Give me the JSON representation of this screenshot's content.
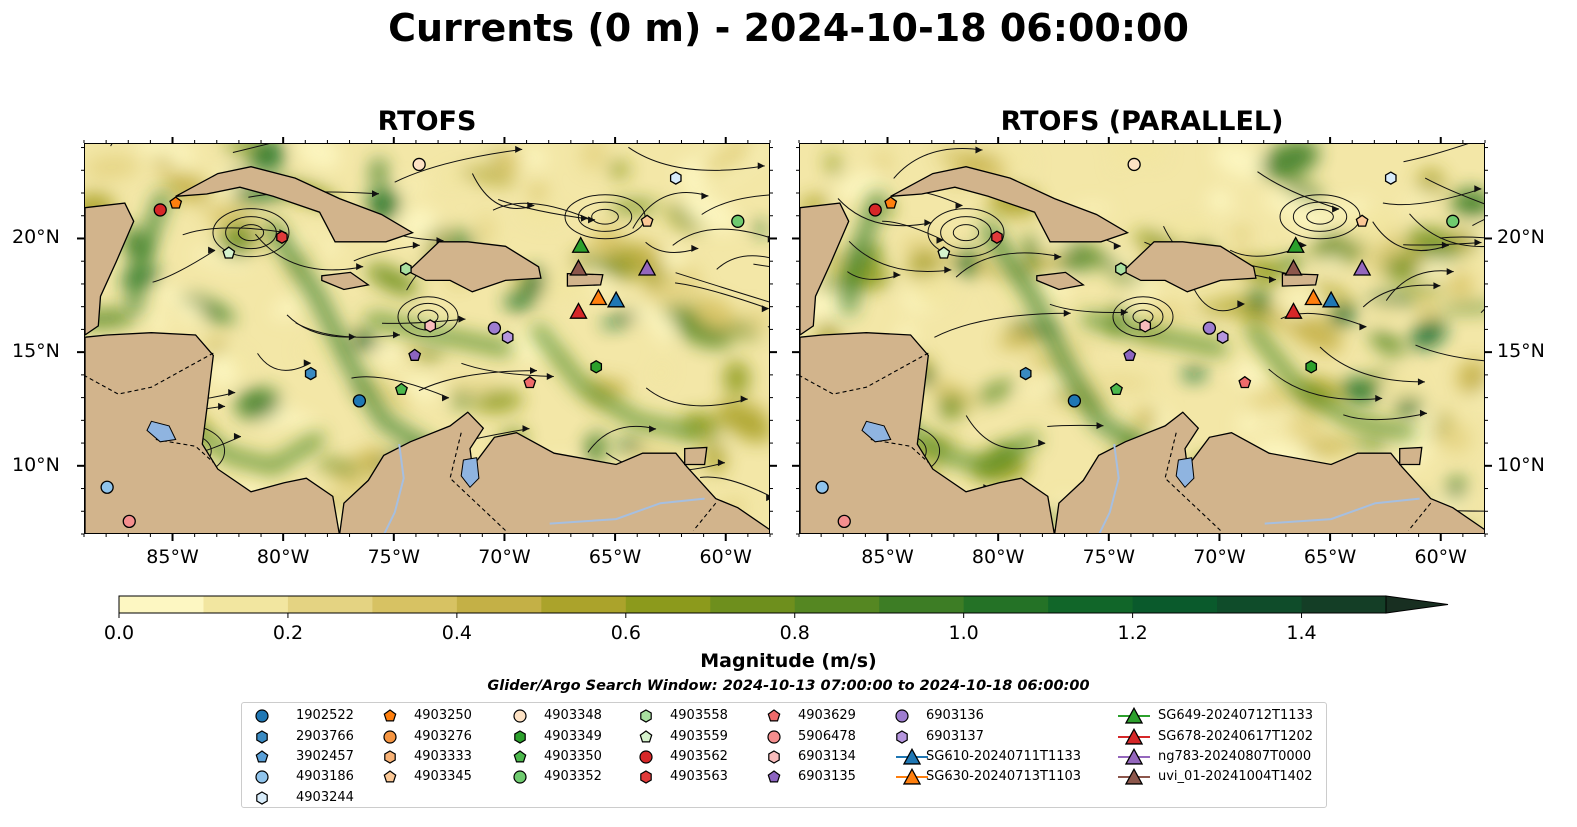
{
  "title": "Currents (0 m) - 2024-10-18 06:00:00",
  "panels": [
    {
      "title": "RTOFS"
    },
    {
      "title": "RTOFS (PARALLEL)"
    }
  ],
  "map": {
    "lon_range": [
      -89,
      -58
    ],
    "lat_range": [
      7,
      24.2
    ],
    "lon_ticks": [
      -85,
      -80,
      -75,
      -70,
      -65,
      -60
    ],
    "lon_tick_labels": [
      "85°W",
      "80°W",
      "75°W",
      "70°W",
      "65°W",
      "60°W"
    ],
    "lat_ticks": [
      10,
      15,
      20
    ],
    "lat_tick_labels": [
      "10°N",
      "15°N",
      "20°N"
    ]
  },
  "colorbar": {
    "label": "Magnitude (m/s)",
    "min": 0.0,
    "max": 1.5,
    "ticks": [
      "0.0",
      "0.2",
      "0.4",
      "0.6",
      "0.8",
      "1.0",
      "1.2",
      "1.4"
    ],
    "tick_values": [
      0.0,
      0.2,
      0.4,
      0.6,
      0.8,
      1.0,
      1.2,
      1.4
    ],
    "colors": [
      "#fdf7c2",
      "#f2e6a0",
      "#e4d382",
      "#d7c263",
      "#c4b046",
      "#aba32b",
      "#8c9a1c",
      "#6e8f1d",
      "#558722",
      "#3d7d25",
      "#247226",
      "#116629",
      "#0a5a2c",
      "#0f4c2a",
      "#143e26",
      "#182f21"
    ],
    "extend": "max"
  },
  "search_window": "Glider/Argo Search Window: 2024-10-13 07:00:00 to 2024-10-18 06:00:00",
  "colors": {
    "land": "#d2b48c",
    "lake": "#8fb4e0",
    "river": "#a6bfe0",
    "ocean_base": "#f3e7a7"
  },
  "legend": [
    {
      "label": "1902522",
      "marker": "circle",
      "color": "#1f77b4"
    },
    {
      "label": "2903766",
      "marker": "hexagon",
      "color": "#3a8ac2"
    },
    {
      "label": "3902457",
      "marker": "pentagon",
      "color": "#5aa0d8"
    },
    {
      "label": "4903186",
      "marker": "circle",
      "color": "#90c4ec"
    },
    {
      "label": "4903244",
      "marker": "hexagon",
      "color": "#d8ecfa"
    },
    {
      "label": "4903250",
      "marker": "pentagon",
      "color": "#ff7f0e"
    },
    {
      "label": "4903276",
      "marker": "circle",
      "color": "#f59542"
    },
    {
      "label": "4903333",
      "marker": "hexagon",
      "color": "#f8b276"
    },
    {
      "label": "4903345",
      "marker": "pentagon",
      "color": "#fbc896"
    },
    {
      "label": "4903348",
      "marker": "circle",
      "color": "#fde2c4"
    },
    {
      "label": "4903349",
      "marker": "hexagon",
      "color": "#2ca02c"
    },
    {
      "label": "4903350",
      "marker": "pentagon",
      "color": "#4cb84c"
    },
    {
      "label": "4903352",
      "marker": "circle",
      "color": "#6fcb6f"
    },
    {
      "label": "4903558",
      "marker": "hexagon",
      "color": "#a9e0a0"
    },
    {
      "label": "4903559",
      "marker": "pentagon",
      "color": "#d5f2cc"
    },
    {
      "label": "4903562",
      "marker": "circle",
      "color": "#d62728"
    },
    {
      "label": "4903563",
      "marker": "hexagon",
      "color": "#e03a3a"
    },
    {
      "label": "4903629",
      "marker": "pentagon",
      "color": "#ef6b6b"
    },
    {
      "label": "5906478",
      "marker": "circle",
      "color": "#f48e8e"
    },
    {
      "label": "6903134",
      "marker": "hexagon",
      "color": "#f9bcbc"
    },
    {
      "label": "6903135",
      "marker": "pentagon",
      "color": "#8c64c0"
    },
    {
      "label": "6903136",
      "marker": "circle",
      "color": "#9e7dd0"
    },
    {
      "label": "6903137",
      "marker": "hexagon",
      "color": "#b596de"
    },
    {
      "label": "SG610-20240711T1133",
      "marker": "triangle",
      "color": "#1f77b4"
    },
    {
      "label": "SG630-20240713T1103",
      "marker": "triangle",
      "color": "#ff7f0e"
    },
    {
      "label": "SG649-20240712T1133",
      "marker": "triangle",
      "color": "#2ca02c"
    },
    {
      "label": "SG678-20240617T1202",
      "marker": "triangle",
      "color": "#d62728"
    },
    {
      "label": "ng783-20240807T0000",
      "marker": "triangle",
      "color": "#9467bd"
    },
    {
      "label": "uvi_01-20241004T1402",
      "marker": "triangle",
      "color": "#8c564b"
    }
  ],
  "markers": [
    {
      "id": "1902522",
      "lon": -76.6,
      "lat": 12.9,
      "marker": "circle",
      "color": "#1f77b4"
    },
    {
      "id": "2903766",
      "lon": -78.8,
      "lat": 14.1,
      "marker": "hexagon",
      "color": "#3a8ac2"
    },
    {
      "id": "4903186",
      "lon": -88.0,
      "lat": 9.1,
      "marker": "circle",
      "color": "#90c4ec"
    },
    {
      "id": "4903244",
      "lon": -62.3,
      "lat": 22.7,
      "marker": "hexagon",
      "color": "#d8ecfa"
    },
    {
      "id": "4903250",
      "lon": -84.9,
      "lat": 21.6,
      "marker": "pentagon",
      "color": "#ff7f0e"
    },
    {
      "id": "4903345",
      "lon": -63.6,
      "lat": 20.8,
      "marker": "pentagon",
      "color": "#fbc896"
    },
    {
      "id": "4903348",
      "lon": -73.9,
      "lat": 23.3,
      "marker": "circle",
      "color": "#fde2c4"
    },
    {
      "id": "4903349",
      "lon": -65.9,
      "lat": 14.4,
      "marker": "hexagon",
      "color": "#2ca02c"
    },
    {
      "id": "4903350",
      "lon": -74.7,
      "lat": 13.4,
      "marker": "pentagon",
      "color": "#4cb84c"
    },
    {
      "id": "4903352",
      "lon": -59.5,
      "lat": 20.8,
      "marker": "circle",
      "color": "#6fcb6f"
    },
    {
      "id": "4903558",
      "lon": -74.5,
      "lat": 18.7,
      "marker": "hexagon",
      "color": "#a9e0a0"
    },
    {
      "id": "4903559",
      "lon": -82.5,
      "lat": 19.4,
      "marker": "pentagon",
      "color": "#d5f2cc"
    },
    {
      "id": "4903562",
      "lon": -85.6,
      "lat": 21.3,
      "marker": "circle",
      "color": "#d62728"
    },
    {
      "id": "4903563",
      "lon": -80.1,
      "lat": 20.1,
      "marker": "hexagon",
      "color": "#e03a3a"
    },
    {
      "id": "4903629",
      "lon": -68.9,
      "lat": 13.7,
      "marker": "pentagon",
      "color": "#ef6b6b"
    },
    {
      "id": "5906478",
      "lon": -87.0,
      "lat": 7.6,
      "marker": "circle",
      "color": "#f48e8e"
    },
    {
      "id": "6903134",
      "lon": -73.4,
      "lat": 16.2,
      "marker": "hexagon",
      "color": "#f9bcbc"
    },
    {
      "id": "6903135",
      "lon": -74.1,
      "lat": 14.9,
      "marker": "pentagon",
      "color": "#8c64c0"
    },
    {
      "id": "6903136",
      "lon": -70.5,
      "lat": 16.1,
      "marker": "circle",
      "color": "#9e7dd0"
    },
    {
      "id": "6903137",
      "lon": -69.9,
      "lat": 15.7,
      "marker": "hexagon",
      "color": "#b596de"
    },
    {
      "id": "SG610-20240711T1133",
      "lon": -65.0,
      "lat": 17.3,
      "marker": "triangle",
      "color": "#1f77b4"
    },
    {
      "id": "SG630-20240713T1103",
      "lon": -65.8,
      "lat": 17.4,
      "marker": "triangle",
      "color": "#ff7f0e"
    },
    {
      "id": "SG649-20240712T1133",
      "lon": -66.6,
      "lat": 19.7,
      "marker": "triangle",
      "color": "#2ca02c"
    },
    {
      "id": "SG678-20240617T1202",
      "lon": -66.7,
      "lat": 16.8,
      "marker": "triangle",
      "color": "#d62728"
    },
    {
      "id": "ng783-20240807T0000",
      "lon": -63.6,
      "lat": 18.7,
      "marker": "triangle",
      "color": "#9467bd"
    },
    {
      "id": "uvi_01-20241004T1402",
      "lon": -66.7,
      "lat": 18.7,
      "marker": "triangle",
      "color": "#8c564b"
    }
  ]
}
